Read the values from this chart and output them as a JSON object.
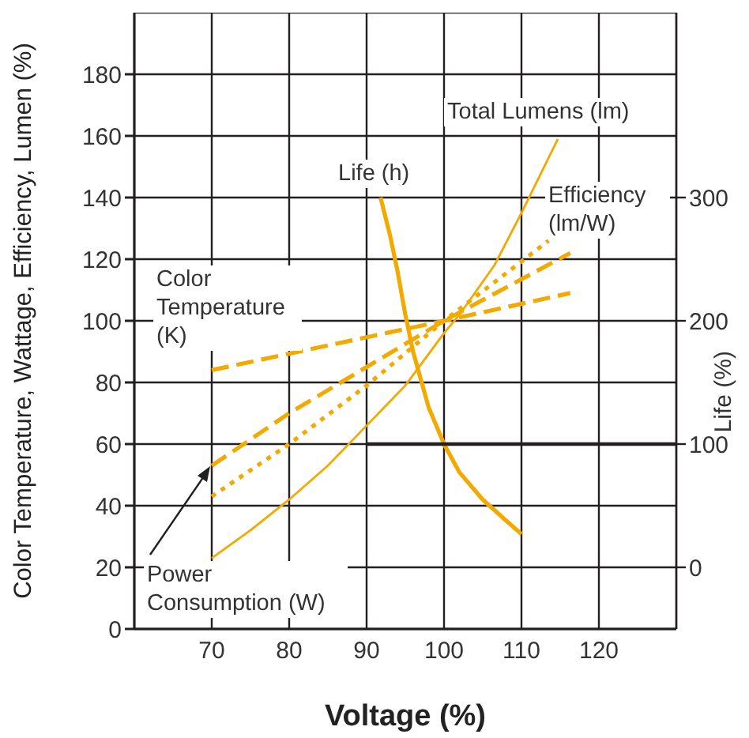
{
  "chart_data": {
    "type": "line",
    "xlabel": "Voltage (%)",
    "ylabel": "Color Temperature, Wattage, Efficiency, Lumen (%)",
    "y2label": "Life (%)",
    "xlim": [
      60,
      130
    ],
    "xticks": [
      70,
      80,
      90,
      100,
      110,
      120
    ],
    "ylim": [
      0,
      200
    ],
    "yticks": [
      0,
      20,
      40,
      60,
      80,
      100,
      120,
      140,
      160,
      180
    ],
    "y2lim": [
      -50,
      450
    ],
    "y2ticks": [
      0,
      100,
      200,
      300
    ],
    "grid": true,
    "series": [
      {
        "name": "Total Lumens (lm)",
        "color": "#f2a900",
        "line_style": "solid",
        "x": [
          70,
          75,
          80,
          85,
          90,
          95,
          100,
          102,
          106.5,
          110,
          114.7
        ],
        "values": [
          23,
          32,
          42,
          53,
          66,
          79,
          96,
          102,
          118,
          135,
          159
        ]
      },
      {
        "name": "Life (h)",
        "color": "#f2a900",
        "line_style": "solid",
        "axis": "y2",
        "x": [
          91.8,
          93,
          94,
          95,
          96,
          98,
          100,
          102,
          105,
          108,
          110
        ],
        "values": [
          300,
          270,
          240,
          205,
          175,
          130,
          100,
          77,
          55,
          38,
          27
        ]
      },
      {
        "name": "Efficiency (lm/W)",
        "color": "#f2a900",
        "line_style": "dotted",
        "x": [
          70,
          80,
          90,
          100,
          113.5
        ],
        "values": [
          43,
          60,
          79,
          100,
          126
        ]
      },
      {
        "name": "Color Temperature (K)",
        "color": "#f2a900",
        "line_style": "dashed",
        "x": [
          70,
          100,
          116.3
        ],
        "values": [
          84,
          100,
          109
        ]
      },
      {
        "name": "Power Consumption (W)",
        "color": "#f2a900",
        "line_style": "dashed",
        "x": [
          70,
          80,
          90,
          100,
          116.3
        ],
        "values": [
          53,
          70,
          85,
          100,
          122
        ]
      },
      {
        "color": "#231f20",
        "line_style": "solid",
        "axis": "y2",
        "x": [
          90,
          130
        ],
        "values": [
          100,
          100
        ]
      }
    ]
  }
}
